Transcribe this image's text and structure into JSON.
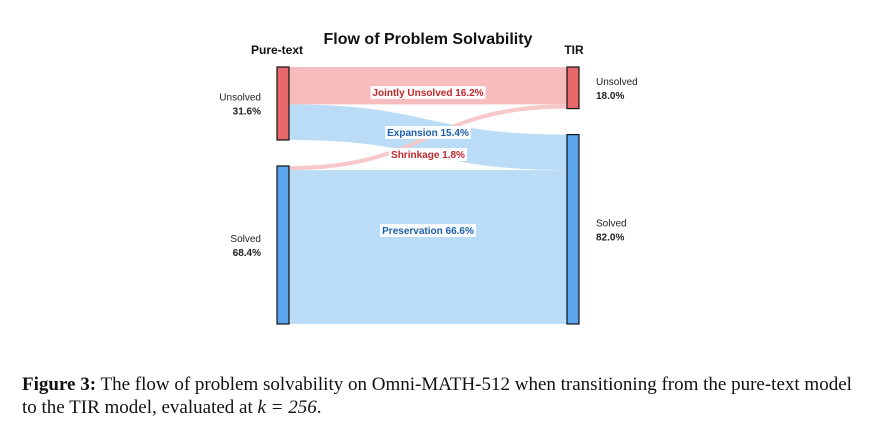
{
  "chart_data": {
    "type": "sankey",
    "title": "Flow of Problem Solvability",
    "left_label": "Pure-text",
    "right_label": "TIR",
    "left_nodes": [
      {
        "id": "unsolved",
        "name": "Unsolved",
        "percent_label": "31.6%",
        "value": 31.6,
        "color": "#e8686a"
      },
      {
        "id": "solved",
        "name": "Solved",
        "percent_label": "68.4%",
        "value": 68.4,
        "color": "#5aa6ee"
      }
    ],
    "right_nodes": [
      {
        "id": "unsolved",
        "name": "Unsolved",
        "percent_label": "18.0%",
        "value": 18.0,
        "color": "#e8686a"
      },
      {
        "id": "solved",
        "name": "Solved",
        "percent_label": "82.0%",
        "value": 82.0,
        "color": "#5aa6ee"
      }
    ],
    "flows": [
      {
        "from": "unsolved",
        "to": "unsolved",
        "label": "Jointly Unsolved 16.2%",
        "value": 16.2,
        "fill": "#f7b8b9",
        "label_color": "#c0282d"
      },
      {
        "from": "unsolved",
        "to": "solved",
        "label": "Expansion 15.4%",
        "value": 15.4,
        "fill": "#b7daf7",
        "label_color": "#1f5fa8"
      },
      {
        "from": "solved",
        "to": "unsolved",
        "label": "Shrinkage 1.8%",
        "value": 1.8,
        "fill": "#f7c5c6",
        "label_color": "#c0282d"
      },
      {
        "from": "solved",
        "to": "solved",
        "label": "Preservation 66.6%",
        "value": 66.6,
        "fill": "#b7daf7",
        "label_color": "#1f5fa8"
      }
    ]
  },
  "caption": {
    "figure_label": "Figure 3:",
    "text_part1": "The flow of problem solvability on Omni-MATH-512 when transitioning from the pure-text model to the TIR model, evaluated at ",
    "math": "k = 256",
    "text_part2": "."
  }
}
